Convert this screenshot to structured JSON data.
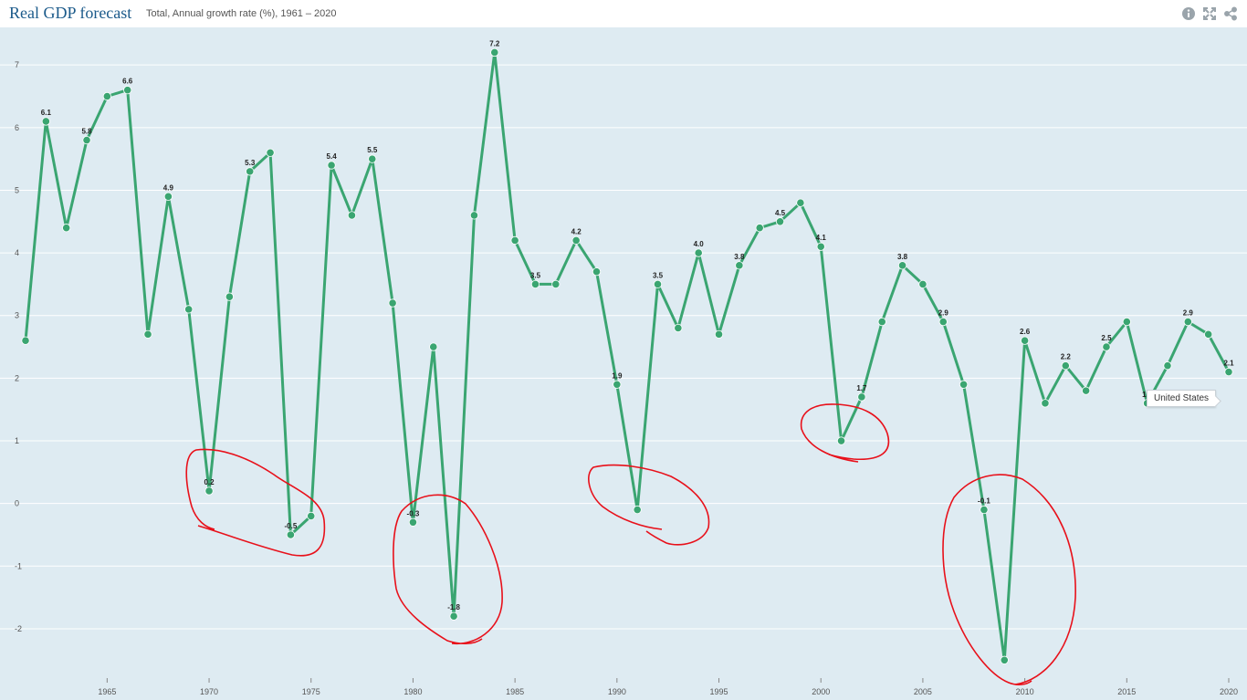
{
  "header": {
    "title": "Real GDP forecast",
    "subtitle": "Total, Annual growth rate (%), 1961 – 2020",
    "tools": [
      "info-icon",
      "fullscreen-icon",
      "share-icon"
    ]
  },
  "colors": {
    "plot_background": "#deebf2",
    "line": "#3aa571",
    "gridline": "#ffffff",
    "annotation": "#e8101a"
  },
  "chart_data": {
    "type": "line",
    "title": "Real GDP forecast",
    "subtitle": "Total, Annual growth rate (%), 1961 – 2020",
    "xlim": [
      1961,
      2020
    ],
    "ylim": [
      -2.7,
      7.6
    ],
    "x_ticks": [
      1965,
      1970,
      1975,
      1980,
      1985,
      1990,
      1995,
      2000,
      2005,
      2010,
      2015,
      2020
    ],
    "y_ticks": [
      -2,
      -1,
      0,
      1,
      2,
      3,
      4,
      5,
      6,
      7
    ],
    "grid": "horizontal",
    "series": [
      {
        "name": "United States",
        "x": [
          1961,
          1962,
          1963,
          1964,
          1965,
          1966,
          1967,
          1968,
          1969,
          1970,
          1971,
          1972,
          1973,
          1974,
          1975,
          1976,
          1977,
          1978,
          1979,
          1980,
          1981,
          1982,
          1983,
          1984,
          1985,
          1986,
          1987,
          1988,
          1989,
          1990,
          1991,
          1992,
          1993,
          1994,
          1995,
          1996,
          1997,
          1998,
          1999,
          2000,
          2001,
          2002,
          2003,
          2004,
          2005,
          2006,
          2007,
          2008,
          2009,
          2010,
          2011,
          2012,
          2013,
          2014,
          2015,
          2016,
          2017,
          2018,
          2019,
          2020
        ],
        "y": [
          2.6,
          6.1,
          4.4,
          5.8,
          6.5,
          6.6,
          2.7,
          4.9,
          3.1,
          0.2,
          3.3,
          5.3,
          5.6,
          -0.5,
          -0.2,
          5.4,
          4.6,
          5.5,
          3.2,
          -0.3,
          2.5,
          -1.8,
          4.6,
          7.2,
          4.2,
          3.5,
          3.5,
          4.2,
          3.7,
          1.9,
          -0.1,
          3.5,
          2.8,
          4.0,
          2.7,
          3.8,
          4.4,
          4.5,
          4.8,
          4.1,
          1.0,
          1.7,
          2.9,
          3.8,
          3.5,
          2.9,
          1.9,
          -0.1,
          -2.5,
          2.6,
          1.6,
          2.2,
          1.8,
          2.5,
          2.9,
          1.6,
          2.2,
          2.9,
          2.7,
          2.1
        ]
      }
    ],
    "data_labels": [
      {
        "x": 1962,
        "text": "6.1"
      },
      {
        "x": 1964,
        "text": "5.8"
      },
      {
        "x": 1966,
        "text": "6.6"
      },
      {
        "x": 1968,
        "text": "4.9"
      },
      {
        "x": 1970,
        "text": "0.2"
      },
      {
        "x": 1972,
        "text": "5.3"
      },
      {
        "x": 1974,
        "text": "-0.5"
      },
      {
        "x": 1976,
        "text": "5.4"
      },
      {
        "x": 1978,
        "text": "5.5"
      },
      {
        "x": 1980,
        "text": "-0.3"
      },
      {
        "x": 1982,
        "text": "-1.8"
      },
      {
        "x": 1984,
        "text": "7.2"
      },
      {
        "x": 1986,
        "text": "3.5"
      },
      {
        "x": 1988,
        "text": "4.2"
      },
      {
        "x": 1990,
        "text": "1.9"
      },
      {
        "x": 1992,
        "text": "3.5"
      },
      {
        "x": 1994,
        "text": "4.0"
      },
      {
        "x": 1996,
        "text": "3.8"
      },
      {
        "x": 1998,
        "text": "4.5"
      },
      {
        "x": 2000,
        "text": "4.1"
      },
      {
        "x": 2002,
        "text": "1.7"
      },
      {
        "x": 2004,
        "text": "3.8"
      },
      {
        "x": 2006,
        "text": "2.9"
      },
      {
        "x": 2008,
        "text": "-0.1"
      },
      {
        "x": 2010,
        "text": "2.6"
      },
      {
        "x": 2012,
        "text": "2.2"
      },
      {
        "x": 2014,
        "text": "2.5"
      },
      {
        "x": 2016,
        "text": "1.6"
      },
      {
        "x": 2018,
        "text": "2.9"
      },
      {
        "x": 2020,
        "text": "2.1"
      }
    ],
    "tooltip": "United States",
    "annotations": [
      {
        "type": "hand-drawn-circle",
        "x": 1974
      },
      {
        "type": "hand-drawn-circle",
        "x": 1981
      },
      {
        "type": "hand-drawn-circle",
        "x": 1991
      },
      {
        "type": "hand-drawn-circle",
        "x": 2001
      },
      {
        "type": "hand-drawn-circle",
        "x": 2009
      }
    ]
  }
}
